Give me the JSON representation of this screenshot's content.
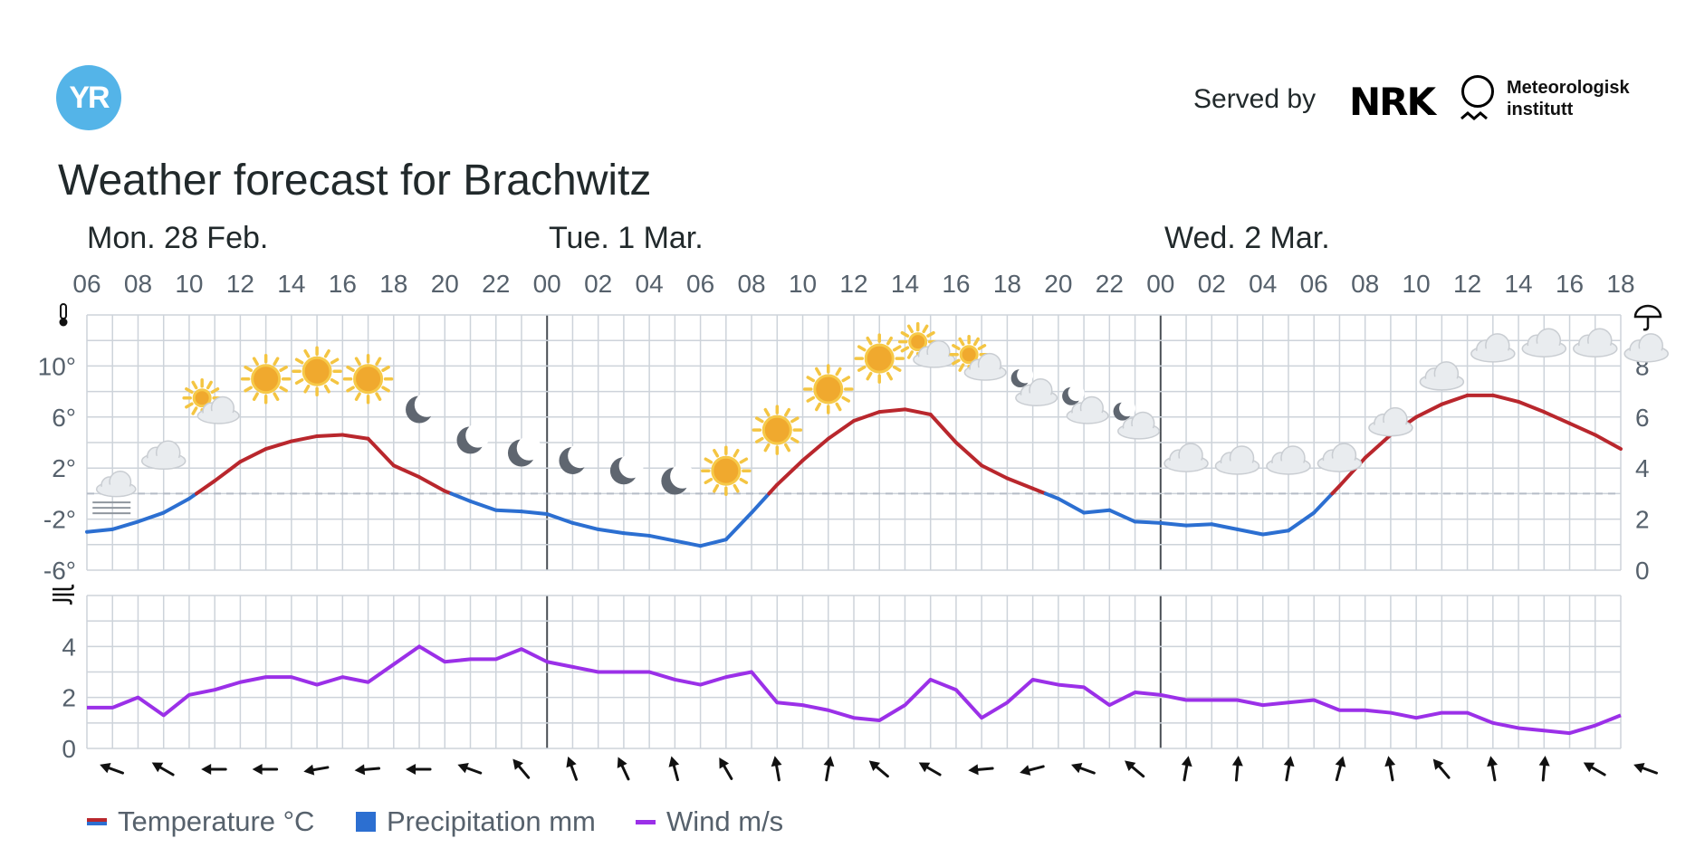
{
  "header": {
    "logo_text": "YR",
    "served_by": "Served by",
    "nrk": "NRK",
    "met_name": "Meteorologisk\ninstitutt"
  },
  "title": "Weather forecast for Brachwitz",
  "days": [
    "Mon. 28 Feb.",
    "Tue. 1 Mar.",
    "Wed. 2 Mar."
  ],
  "legend": {
    "temperature": "Temperature °C",
    "precipitation": "Precipitation mm",
    "wind": "Wind m/s"
  },
  "colors": {
    "temp_warm": "#b9272d",
    "temp_cold": "#2c6fd1",
    "wind": "#9b30e8",
    "grid": "#cdd3da",
    "day_line": "#4a4f55",
    "zero_line": "#b5bcc6"
  },
  "chart_data": [
    {
      "type": "line",
      "name": "temperature",
      "x_hours": [
        0,
        1,
        2,
        3,
        4,
        5,
        6,
        7,
        8,
        9,
        10,
        11,
        12,
        13,
        14,
        15,
        16,
        17,
        18,
        19,
        20,
        21,
        22,
        23,
        24,
        25,
        26,
        27,
        28,
        29,
        30,
        31,
        32,
        33,
        34,
        35,
        36,
        37,
        38,
        39,
        40,
        41,
        42,
        43,
        44,
        45,
        46,
        47,
        48,
        49,
        50,
        51,
        52,
        53,
        54,
        55,
        56,
        57,
        58,
        59,
        60
      ],
      "x_tick_labels": [
        "06",
        "08",
        "10",
        "12",
        "14",
        "16",
        "18",
        "20",
        "22",
        "00",
        "02",
        "04",
        "06",
        "08",
        "10",
        "12",
        "14",
        "16",
        "18",
        "20",
        "22",
        "00",
        "02",
        "04",
        "06",
        "08",
        "10",
        "12",
        "14",
        "16",
        "18"
      ],
      "values": [
        -3.0,
        -2.8,
        -2.2,
        -1.5,
        -0.4,
        1.0,
        2.5,
        3.5,
        4.1,
        4.5,
        4.6,
        4.3,
        2.2,
        1.3,
        0.2,
        -0.6,
        -1.3,
        -1.4,
        -1.6,
        -2.3,
        -2.8,
        -3.1,
        -3.3,
        -3.7,
        -4.1,
        -3.6,
        -1.5,
        0.7,
        2.6,
        4.3,
        5.7,
        6.4,
        6.6,
        6.2,
        4.0,
        2.2,
        1.2,
        0.4,
        -0.4,
        -1.5,
        -1.3,
        -2.2,
        -2.3,
        -2.5,
        -2.4,
        -2.8,
        -3.2,
        -2.9,
        -1.5,
        0.6,
        2.8,
        4.6,
        6.0,
        7.0,
        7.7,
        7.7,
        7.2,
        6.4,
        5.5,
        4.6,
        3.5
      ],
      "ylim": [
        -6,
        14
      ],
      "y_tick_labels": [
        "-6°",
        "-2°",
        "2°",
        "6°",
        "10°"
      ],
      "precip_axis_ticks": [
        "0",
        "2",
        "4",
        "6",
        "8"
      ]
    },
    {
      "type": "line",
      "name": "wind",
      "x_hours": [
        0,
        1,
        2,
        3,
        4,
        5,
        6,
        7,
        8,
        9,
        10,
        11,
        12,
        13,
        14,
        15,
        16,
        17,
        18,
        19,
        20,
        21,
        22,
        23,
        24,
        25,
        26,
        27,
        28,
        29,
        30,
        31,
        32,
        33,
        34,
        35,
        36,
        37,
        38,
        39,
        40,
        41,
        42,
        43,
        44,
        45,
        46,
        47,
        48,
        49,
        50,
        51,
        52,
        53,
        54,
        55,
        56,
        57,
        58,
        59,
        60
      ],
      "values": [
        1.6,
        1.6,
        2.0,
        1.3,
        2.1,
        2.3,
        2.6,
        2.8,
        2.8,
        2.5,
        2.8,
        2.6,
        3.3,
        4.0,
        3.4,
        3.5,
        3.5,
        3.9,
        3.4,
        3.2,
        3.0,
        3.0,
        3.0,
        2.7,
        2.5,
        2.8,
        3.0,
        1.8,
        1.7,
        1.5,
        1.2,
        1.1,
        1.7,
        2.7,
        2.3,
        1.2,
        1.8,
        2.7,
        2.5,
        2.4,
        1.7,
        2.2,
        2.1,
        1.9,
        1.9,
        1.9,
        1.7,
        1.8,
        1.9,
        1.5,
        1.5,
        1.4,
        1.2,
        1.4,
        1.4,
        1.0,
        0.8,
        0.7,
        0.6,
        0.9,
        1.3
      ],
      "ylim": [
        0,
        6
      ],
      "y_tick_labels": [
        "0",
        "2",
        "4"
      ]
    }
  ],
  "weather_symbols": [
    "fog",
    "cloudy",
    "partly-cloudy-day",
    "sun",
    "sun",
    "sun",
    "moon",
    "moon",
    "moon",
    "moon",
    "moon",
    "moon",
    "sun",
    "sun",
    "sun",
    "sun",
    "partly-cloudy-day",
    "partly-cloudy-day",
    "partly-cloudy-night",
    "partly-cloudy-night",
    "partly-cloudy-night",
    "cloudy",
    "cloudy",
    "cloudy",
    "cloudy",
    "cloudy",
    "cloudy",
    "cloudy",
    "cloudy",
    "cloudy",
    "cloudy"
  ],
  "symbol_temps": [
    -1.4,
    1.0,
    4.8,
    7.0,
    7.6,
    7.0,
    4.6,
    2.2,
    1.2,
    0.6,
    -0.2,
    -1.0,
    -0.2,
    3.0,
    6.2,
    8.6,
    9.2,
    8.2,
    6.2,
    4.8,
    3.6,
    0.8,
    0.6,
    0.6,
    0.8,
    3.6,
    7.2,
    9.4,
    9.8,
    9.8,
    9.4
  ],
  "wind_directions_deg": [
    290,
    300,
    270,
    270,
    260,
    265,
    270,
    290,
    320,
    340,
    335,
    345,
    330,
    350,
    10,
    310,
    300,
    265,
    255,
    290,
    310,
    10,
    5,
    10,
    15,
    350,
    320,
    350,
    5,
    300,
    290
  ]
}
